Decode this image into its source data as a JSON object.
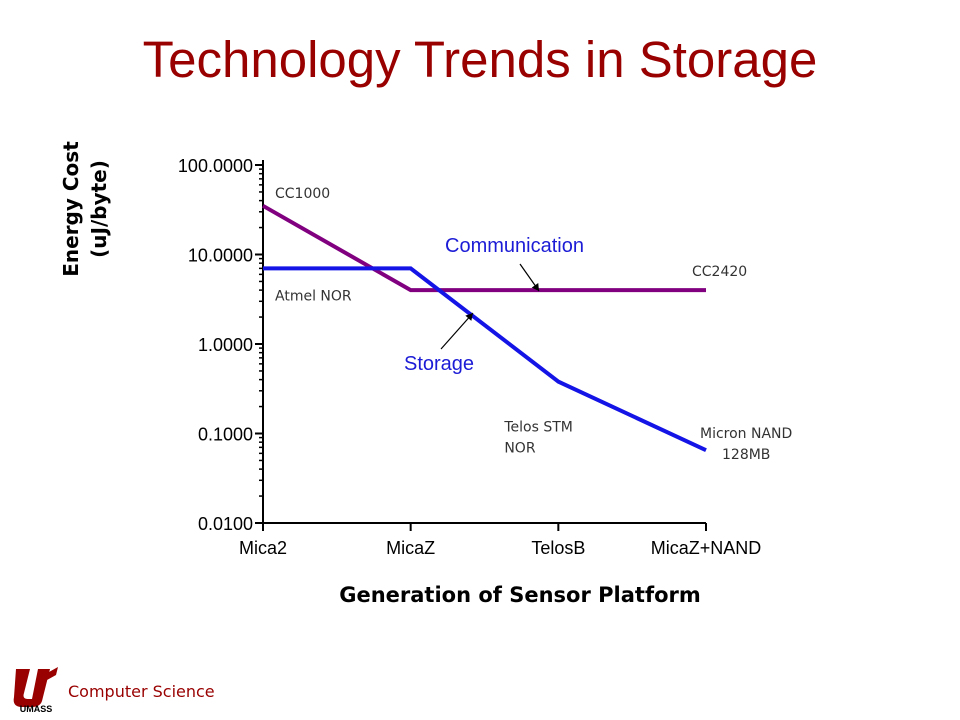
{
  "slide": {
    "title": "Technology Trends in Storage"
  },
  "footer": {
    "logo_text": "UMASS",
    "label": "Computer Science"
  },
  "chart_data": {
    "type": "line",
    "y_scale": "log",
    "ylim": [
      0.01,
      100
    ],
    "y_ticks": [
      "100.0000",
      "10.0000",
      "1.0000",
      "0.1000",
      "0.0100"
    ],
    "y_tick_values": [
      100,
      10,
      1,
      0.1,
      0.01
    ],
    "categories": [
      "Mica2",
      "MicaZ",
      "TelosB",
      "MicaZ+NAND"
    ],
    "ylabel": [
      "Energy Cost",
      "(uJ/byte)"
    ],
    "xlabel": "Generation of Sensor Platform",
    "series": [
      {
        "name": "Communication",
        "color": "#800080",
        "values": [
          35,
          4,
          4,
          4
        ]
      },
      {
        "name": "Storage",
        "color": "#1414e6",
        "values": [
          7,
          7,
          0.38,
          0.065
        ]
      }
    ],
    "point_labels": [
      {
        "text": [
          "CC1000"
        ],
        "x_index": 0,
        "y": 35
      },
      {
        "text": [
          "CC2420"
        ],
        "x_index": 3,
        "y": 4
      },
      {
        "text": [
          "Atmel NOR"
        ],
        "x_index": 0,
        "y": 7
      },
      {
        "text": [
          "Telos STM",
          "NOR"
        ],
        "x_index": 2,
        "y": 0.38
      },
      {
        "text": [
          "Micron NAND",
          "128MB"
        ],
        "x_index": 3,
        "y": 0.065
      }
    ],
    "series_callouts": [
      {
        "text": "Communication",
        "series": "Communication"
      },
      {
        "text": "Storage",
        "series": "Storage"
      }
    ]
  }
}
